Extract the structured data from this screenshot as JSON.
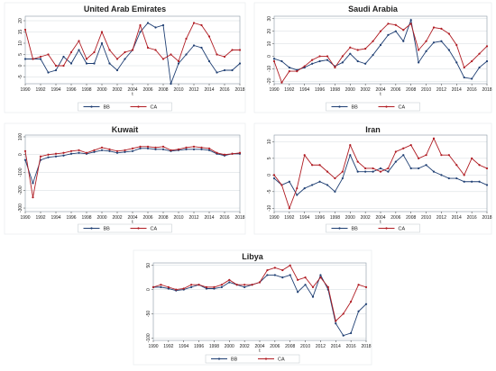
{
  "colors": {
    "BB": "#1f3f73",
    "CA": "#b01c23",
    "frame": "#8a9aa6",
    "grid": "#c8d0d6"
  },
  "chart_data": [
    {
      "type": "line",
      "title": "United Arab Emirates",
      "x": [
        1990,
        1991,
        1992,
        1993,
        1994,
        1995,
        1996,
        1997,
        1998,
        1999,
        2000,
        2001,
        2002,
        2003,
        2004,
        2005,
        2006,
        2007,
        2008,
        2009,
        2010,
        2011,
        2012,
        2013,
        2014,
        2015,
        2016,
        2017,
        2018
      ],
      "xticks": [
        "1990",
        "1992",
        "1994",
        "1996",
        "1998",
        "2000",
        "2002",
        "2004",
        "2006",
        "2008",
        "2010",
        "2012",
        "2014",
        "2016",
        "2018"
      ],
      "ylim": [
        -8,
        22
      ],
      "yticks": [
        -5,
        0,
        5,
        10,
        15,
        20
      ],
      "xlabel": "t",
      "series": [
        {
          "name": "BB",
          "values": [
            3,
            3,
            3,
            -3,
            -2,
            4,
            1,
            7,
            1,
            1,
            10,
            1,
            -2,
            3,
            7,
            15,
            19,
            17,
            18,
            -8,
            1,
            5,
            9,
            8,
            2,
            -3,
            -2,
            -2,
            1
          ]
        },
        {
          "name": "CA",
          "values": [
            16,
            3,
            4,
            5,
            0,
            0,
            6,
            11,
            3,
            6,
            15,
            7,
            3,
            6,
            7,
            18,
            8,
            7,
            3,
            5,
            2,
            12,
            19,
            18,
            13,
            5,
            4,
            7,
            7
          ]
        }
      ],
      "legend": "bottom"
    },
    {
      "type": "line",
      "title": "Saudi Arabia",
      "x": [
        1990,
        1991,
        1992,
        1993,
        1994,
        1995,
        1996,
        1997,
        1998,
        1999,
        2000,
        2001,
        2002,
        2003,
        2004,
        2005,
        2006,
        2007,
        2008,
        2009,
        2010,
        2011,
        2012,
        2013,
        2014,
        2015,
        2016,
        2017,
        2018
      ],
      "xticks": [
        "1990",
        "1992",
        "1994",
        "1996",
        "1998",
        "2000",
        "2002",
        "2004",
        "2006",
        "2008",
        "2010",
        "2012",
        "2014",
        "2016",
        "2018"
      ],
      "ylim": [
        -22,
        32
      ],
      "yticks": [
        -20,
        -10,
        0,
        10,
        20,
        30
      ],
      "xlabel": "t",
      "series": [
        {
          "name": "BB",
          "values": [
            -2,
            -4,
            -9,
            -11,
            -9,
            -6,
            -4,
            -3,
            -8,
            -5,
            2,
            -4,
            -6,
            1,
            9,
            17,
            20,
            12,
            29,
            -5,
            4,
            11,
            12,
            5,
            -5,
            -17,
            -18,
            -9,
            -4
          ]
        },
        {
          "name": "CA",
          "values": [
            -4,
            -21,
            -12,
            -12,
            -8,
            -3,
            0,
            0,
            -9,
            0,
            7,
            5,
            6,
            12,
            20,
            26,
            25,
            21,
            26,
            5,
            12,
            23,
            22,
            18,
            9,
            -9,
            -4,
            2,
            8
          ]
        }
      ],
      "legend": "bottom"
    },
    {
      "type": "line",
      "title": "Kuwait",
      "x": [
        1990,
        1991,
        1992,
        1993,
        1994,
        1995,
        1996,
        1997,
        1998,
        1999,
        2000,
        2001,
        2002,
        2003,
        2004,
        2005,
        2006,
        2007,
        2008,
        2009,
        2010,
        2011,
        2012,
        2013,
        2014,
        2015,
        2016,
        2017,
        2018
      ],
      "xticks": [
        "1990",
        "1992",
        "1994",
        "1996",
        "1998",
        "2000",
        "2002",
        "2004",
        "2006",
        "2008",
        "2010",
        "2012",
        "2014",
        "2016",
        "2018"
      ],
      "ylim": [
        -320,
        110
      ],
      "yticks": [
        -300,
        -200,
        -100,
        0,
        100
      ],
      "xlabel": "t",
      "series": [
        {
          "name": "BB",
          "values": [
            -30,
            -160,
            -30,
            -15,
            -10,
            -5,
            5,
            10,
            5,
            15,
            25,
            20,
            10,
            15,
            20,
            35,
            35,
            30,
            30,
            20,
            25,
            30,
            30,
            30,
            25,
            5,
            -5,
            5,
            5
          ]
        },
        {
          "name": "CA",
          "values": [
            20,
            -240,
            -10,
            0,
            5,
            10,
            20,
            25,
            10,
            25,
            40,
            30,
            20,
            25,
            35,
            45,
            45,
            40,
            45,
            25,
            30,
            40,
            45,
            40,
            35,
            10,
            0,
            5,
            10
          ]
        }
      ],
      "legend": "bottom"
    },
    {
      "type": "line",
      "title": "Iran",
      "x": [
        1990,
        1991,
        1992,
        1993,
        1994,
        1995,
        1996,
        1997,
        1998,
        1999,
        2000,
        2001,
        2002,
        2003,
        2004,
        2005,
        2006,
        2007,
        2008,
        2009,
        2010,
        2011,
        2012,
        2013,
        2014,
        2015,
        2016,
        2017,
        2018
      ],
      "xticks": [
        "1990",
        "1992",
        "1994",
        "1996",
        "1998",
        "2000",
        "2002",
        "2004",
        "2006",
        "2008",
        "2010",
        "2012",
        "2014",
        "2016",
        "2018"
      ],
      "ylim": [
        -11,
        12
      ],
      "yticks": [
        -10,
        -5,
        0,
        5,
        10
      ],
      "xlabel": "t",
      "series": [
        {
          "name": "BB",
          "values": [
            -1,
            -3,
            -2,
            -6,
            -4,
            -3,
            -2,
            -3,
            -5,
            -1,
            6,
            1,
            1,
            1,
            2,
            1,
            4,
            6,
            2,
            2,
            3,
            1,
            0,
            -1,
            -1,
            -2,
            -2,
            -2,
            -3
          ]
        },
        {
          "name": "CA",
          "values": [
            0,
            -3,
            -10,
            -4,
            6,
            3,
            3,
            1,
            -1,
            1,
            9,
            4,
            2,
            2,
            1,
            2,
            7,
            8,
            9,
            5,
            6,
            11,
            6,
            6,
            3,
            0,
            5,
            3,
            2
          ]
        }
      ],
      "legend": "bottom"
    },
    {
      "type": "line",
      "title": "Libya",
      "x": [
        1990,
        1991,
        1992,
        1993,
        1994,
        1995,
        1996,
        1997,
        1998,
        1999,
        2000,
        2001,
        2002,
        2003,
        2004,
        2005,
        2006,
        2007,
        2008,
        2009,
        2010,
        2011,
        2012,
        2013,
        2014,
        2015,
        2016,
        2017,
        2018
      ],
      "xticks": [
        "1990",
        "1992",
        "1994",
        "1996",
        "1998",
        "2000",
        "2002",
        "2004",
        "2006",
        "2008",
        "2010",
        "2012",
        "2014",
        "2016",
        "2018"
      ],
      "ylim": [
        -105,
        55
      ],
      "yticks": [
        -100,
        -50,
        0,
        50
      ],
      "xlabel": "t",
      "series": [
        {
          "name": "BB",
          "values": [
            5,
            5,
            2,
            -2,
            0,
            5,
            10,
            2,
            2,
            5,
            15,
            10,
            5,
            10,
            15,
            30,
            30,
            25,
            30,
            -5,
            10,
            -15,
            30,
            0,
            -70,
            -95,
            -90,
            -45,
            -30
          ]
        },
        {
          "name": "CA",
          "values": [
            5,
            10,
            5,
            0,
            2,
            10,
            10,
            5,
            5,
            10,
            20,
            10,
            10,
            10,
            15,
            40,
            45,
            40,
            50,
            20,
            25,
            5,
            25,
            5,
            -65,
            -50,
            -25,
            10,
            5
          ]
        }
      ],
      "legend": "bottom"
    }
  ]
}
